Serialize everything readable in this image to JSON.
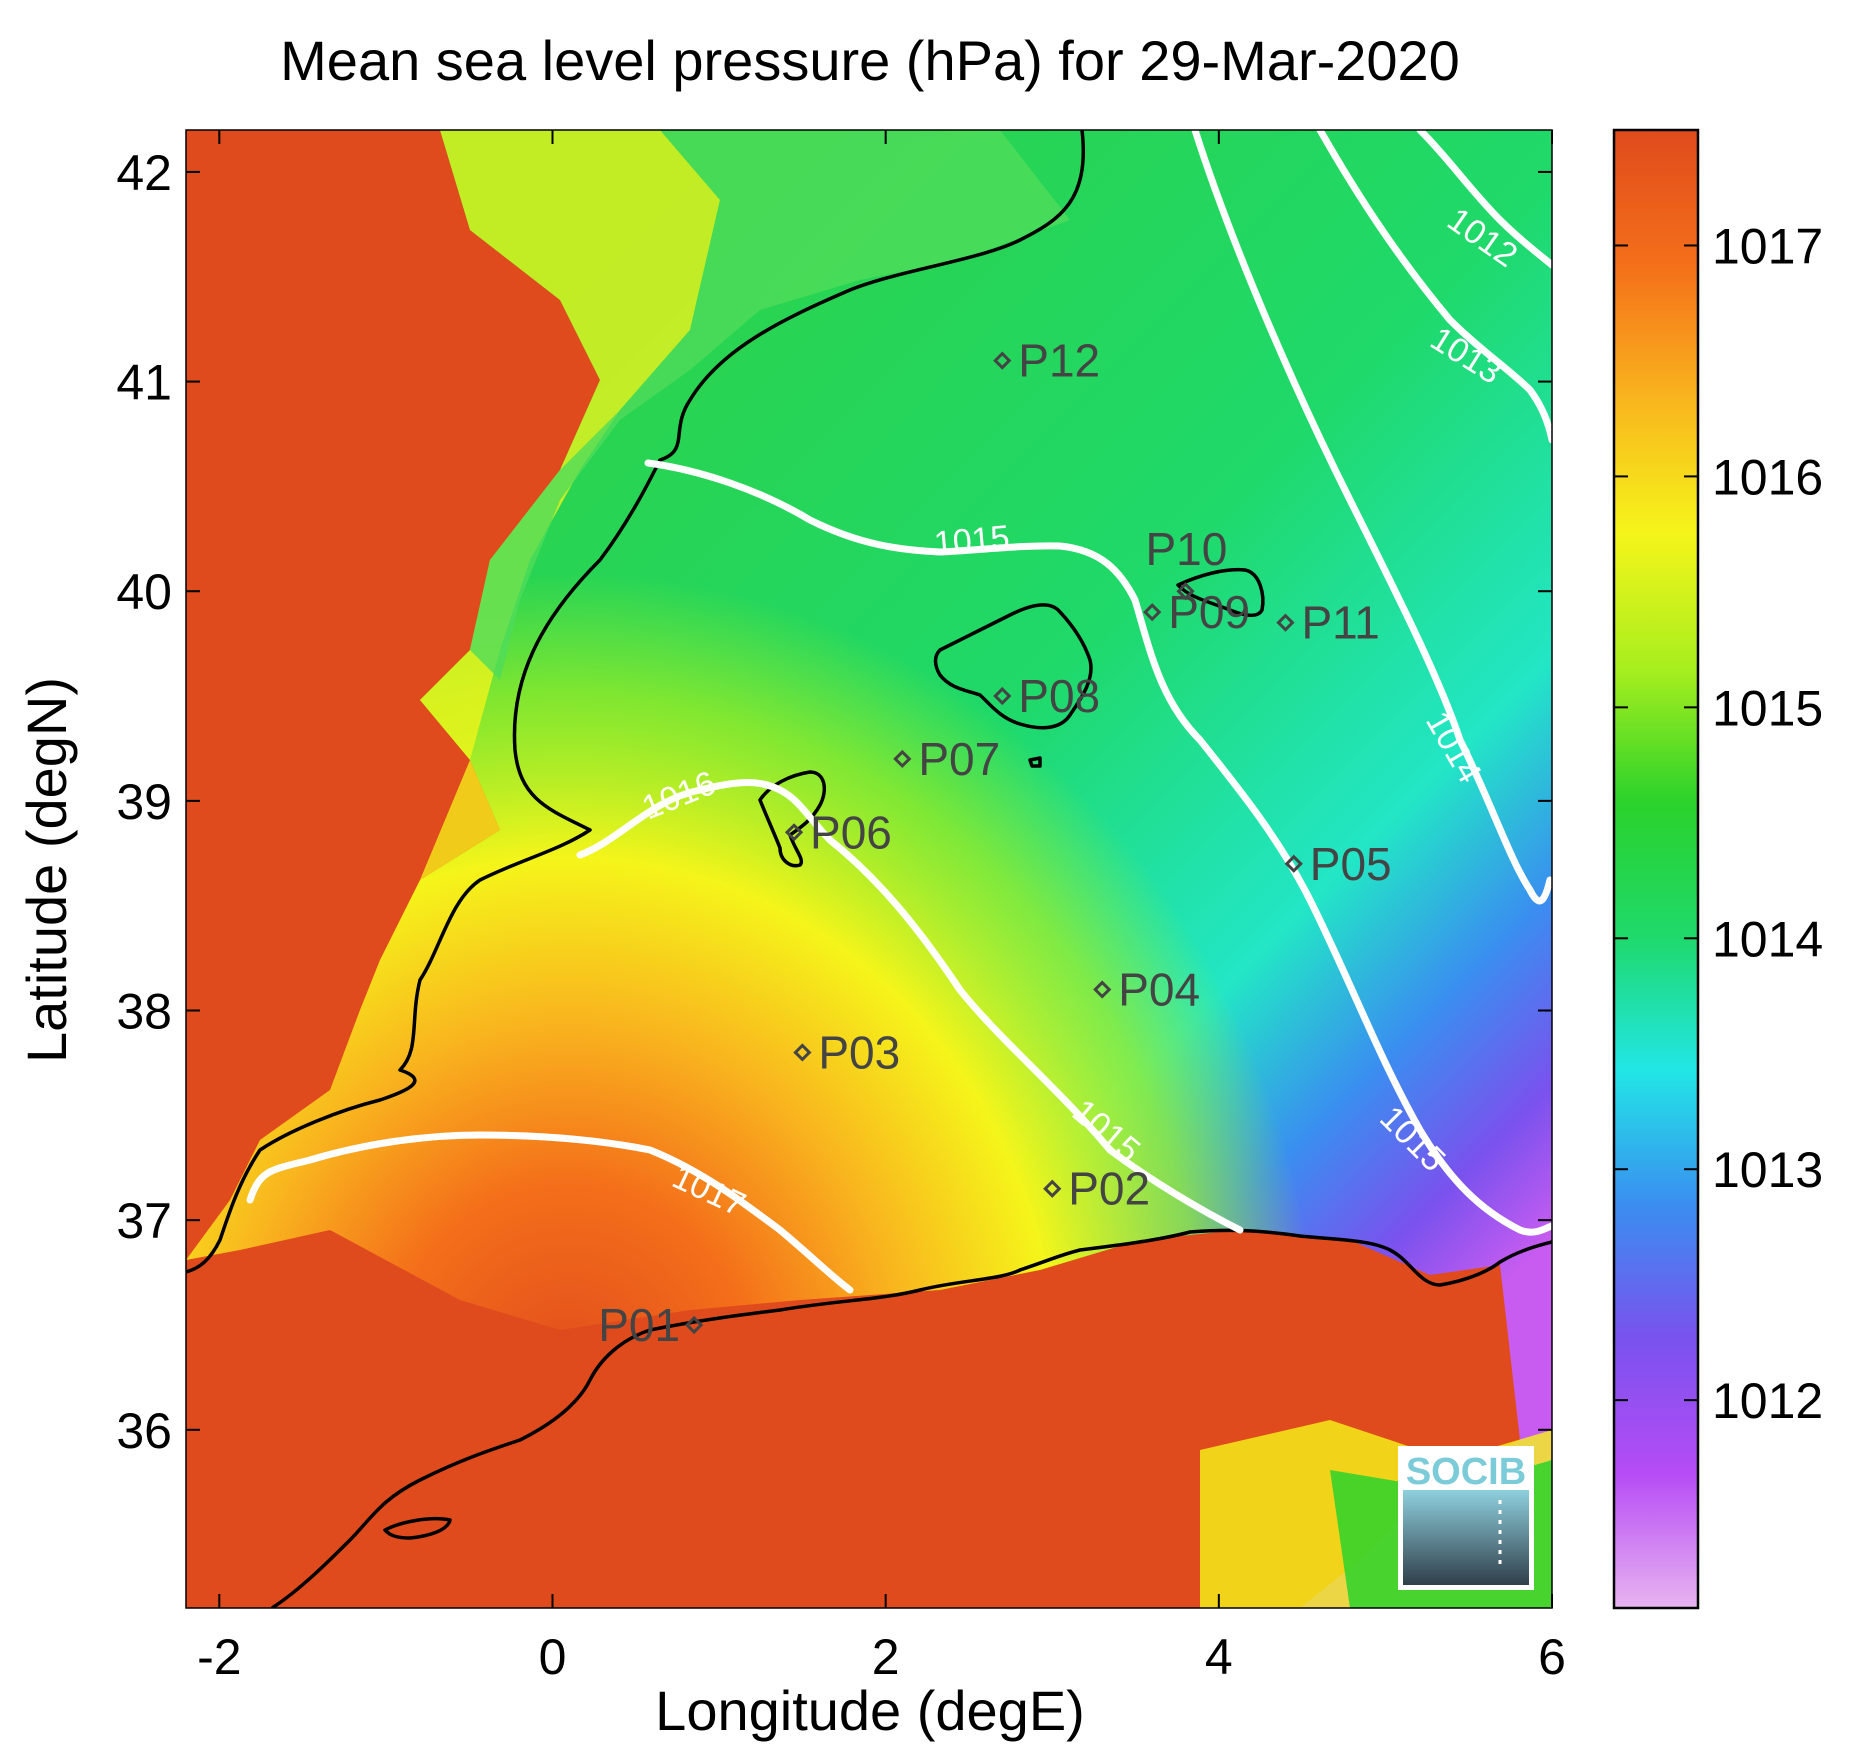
{
  "title": "Mean sea level pressure (hPa) for 29-Mar-2020",
  "xlabel": "Longitude (degE)",
  "ylabel": "Latitude (degN)",
  "x_ticks": [
    "-2",
    "0",
    "2",
    "4",
    "6"
  ],
  "y_ticks": [
    "42",
    "41",
    "40",
    "39",
    "38",
    "37",
    "36"
  ],
  "colorbar": {
    "ticks": [
      "1017",
      "1016",
      "1015",
      "1014",
      "1013",
      "1012"
    ],
    "range": [
      1011.1,
      1017.5
    ],
    "colors": [
      "#e8b4f0",
      "#b64cf5",
      "#7a52ee",
      "#3a8ef0",
      "#22e6e6",
      "#1fd96a",
      "#2bd22b",
      "#a8ee1e",
      "#f5f51a",
      "#f9b51e",
      "#f46f1a",
      "#e04b1d"
    ]
  },
  "contours": [
    {
      "label": "1012"
    },
    {
      "label": "1013"
    },
    {
      "label": "1014"
    },
    {
      "label": "1015"
    },
    {
      "label": "1015"
    },
    {
      "label": "1015"
    },
    {
      "label": "1016"
    },
    {
      "label": "1017"
    }
  ],
  "stations": [
    {
      "id": "P01",
      "lon": 0.85,
      "lat": 36.5
    },
    {
      "id": "P02",
      "lon": 3.0,
      "lat": 37.15
    },
    {
      "id": "P03",
      "lon": 1.5,
      "lat": 37.8
    },
    {
      "id": "P04",
      "lon": 3.3,
      "lat": 38.1
    },
    {
      "id": "P05",
      "lon": 4.45,
      "lat": 38.7
    },
    {
      "id": "P06",
      "lon": 1.45,
      "lat": 38.85
    },
    {
      "id": "P07",
      "lon": 2.1,
      "lat": 39.2
    },
    {
      "id": "P08",
      "lon": 2.7,
      "lat": 39.5
    },
    {
      "id": "P09",
      "lon": 3.6,
      "lat": 39.9
    },
    {
      "id": "P10",
      "lon": 3.8,
      "lat": 40.0
    },
    {
      "id": "P11",
      "lon": 4.4,
      "lat": 39.85
    },
    {
      "id": "P12",
      "lon": 2.7,
      "lat": 41.1
    }
  ],
  "logo": {
    "text": "SOCIB"
  }
}
